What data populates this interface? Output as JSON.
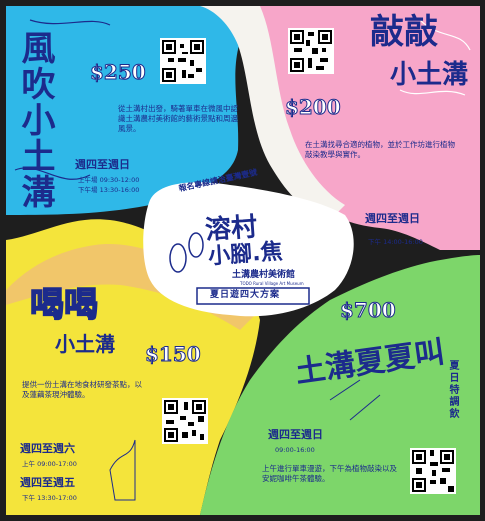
{
  "poster": {
    "center": {
      "title_line1": "溶村",
      "title_line2": "小腳.焦",
      "museum_name": "土溝農村美術館",
      "museum_en": "TODO Rural Village Art Museum",
      "subtitle": "夏日遊四大方案",
      "banner": "報名專線請洽臺灣壹號"
    },
    "plans": [
      {
        "title": "風吹小土溝",
        "price": "$250",
        "description": "從土溝村出發，騎著單車在微風中認識土溝農村美術館的藝術景點和周邊風景。",
        "days": "週四至週日",
        "times": [
          "上午場  09:30-12:00",
          "下午場  13:30-16:00"
        ]
      },
      {
        "title_line1": "敲敲",
        "title_line2": "小土溝",
        "price": "$200",
        "description": "在土溝找尋合適的植物，並於工作坊進行植物敲染教學與實作。",
        "days": "週四至週日",
        "times": [
          "下午  14:00-16:00"
        ]
      },
      {
        "title_line1": "喝喝",
        "title_line2": "小土溝",
        "price": "$150",
        "description": "提供一份土溝在地食材研發茶點，以及蓮藕茶現沖體驗。",
        "days_1": "週四至週六",
        "time_1": "上午  09:00-17:00",
        "days_2": "週四至週五",
        "time_2": "下午  13:30-17:00"
      },
      {
        "title": "土溝夏夏叫",
        "side_note": "夏日特調飲",
        "price": "$700",
        "description": "上午進行單車漫遊，下午為植物敲染以及安妮咖啡午茶體驗。",
        "days": "週四至週日",
        "times": [
          "09:00-16:00"
        ]
      }
    ],
    "colors": {
      "blue": "#2fb8e8",
      "pink": "#f7a6c9",
      "yellow": "#f4e43b",
      "green": "#7dd66a",
      "tan": "#f1c66a",
      "ink": "#1c2b8c"
    }
  }
}
